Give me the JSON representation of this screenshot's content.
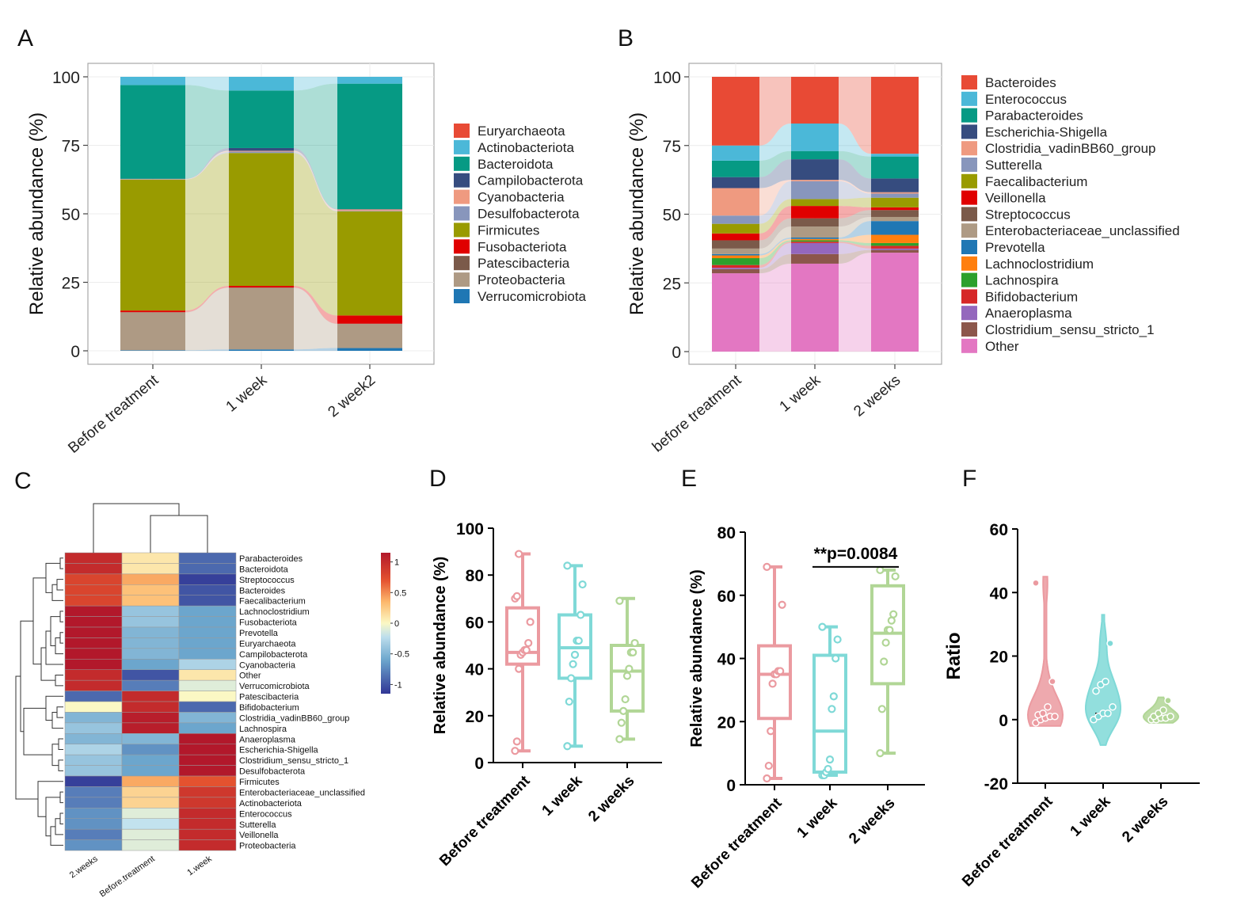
{
  "panels": {
    "A": {
      "letter": "A"
    },
    "B": {
      "letter": "B"
    },
    "C": {
      "letter": "C"
    },
    "D": {
      "letter": "D"
    },
    "E": {
      "letter": "E"
    },
    "F": {
      "letter": "F"
    }
  },
  "chart_data": [
    {
      "panel": "A",
      "type": "bar",
      "stacked": true,
      "flow_bands": true,
      "categories": [
        "Before treatment",
        "1 week",
        "2 week2"
      ],
      "ylabel": "Relative abundance (%)",
      "ylim": [
        0,
        100
      ],
      "yticks": [
        0,
        25,
        50,
        75,
        100
      ],
      "grid": true,
      "legend_position": "right",
      "series": [
        {
          "name": "Verrucomicrobiota",
          "color": "#1f77b4",
          "values": [
            0.2,
            0.5,
            1.0
          ]
        },
        {
          "name": "Proteobacteria",
          "color": "#ae9a84",
          "values": [
            13.8,
            22.5,
            8.8
          ]
        },
        {
          "name": "Patescibacteria",
          "color": "#7b5a4a",
          "values": [
            0.1,
            0.1,
            0.1
          ]
        },
        {
          "name": "Fusobacteriota",
          "color": "#e00000",
          "values": [
            0.6,
            0.6,
            3.0
          ]
        },
        {
          "name": "Firmicutes",
          "color": "#999b00",
          "values": [
            47.8,
            48.5,
            38.0
          ]
        },
        {
          "name": "Desulfobacterota",
          "color": "#8896bc",
          "values": [
            0.1,
            0.5,
            0.2
          ]
        },
        {
          "name": "Cyanobacteria",
          "color": "#ef9a80",
          "values": [
            0.1,
            0.3,
            0.5
          ]
        },
        {
          "name": "Campilobacterota",
          "color": "#364c7f",
          "values": [
            0.1,
            1.0,
            0.1
          ]
        },
        {
          "name": "Bacteroidota",
          "color": "#069a84",
          "values": [
            34.2,
            21.0,
            45.8
          ]
        },
        {
          "name": "Actinobacteriota",
          "color": "#4bb8d8",
          "values": [
            3.0,
            5.0,
            2.5
          ]
        },
        {
          "name": "Euryarchaeota",
          "color": "#e84a35",
          "values": [
            0.0,
            0.0,
            0.0
          ]
        }
      ],
      "legend_order": [
        "Euryarchaeota",
        "Actinobacteriota",
        "Bacteroidota",
        "Campilobacterota",
        "Cyanobacteria",
        "Desulfobacterota",
        "Firmicutes",
        "Fusobacteriota",
        "Patescibacteria",
        "Proteobacteria",
        "Verrucomicrobiota"
      ]
    },
    {
      "panel": "B",
      "type": "bar",
      "stacked": true,
      "flow_bands": true,
      "categories": [
        "before treatment",
        "1 week",
        "2 weeks"
      ],
      "ylabel": "Relative abundance (%)",
      "ylim": [
        0,
        100
      ],
      "yticks": [
        0,
        25,
        50,
        75,
        100
      ],
      "grid": true,
      "legend_position": "right",
      "series": [
        {
          "name": "Other",
          "color": "#e377c2",
          "values": [
            28.5,
            32.0,
            36.0
          ]
        },
        {
          "name": "Clostridium_sensu_stricto_1",
          "color": "#8c564b",
          "values": [
            1.5,
            3.5,
            1.0
          ]
        },
        {
          "name": "Anaeroplasma",
          "color": "#9467bd",
          "values": [
            0.5,
            4.0,
            0.5
          ]
        },
        {
          "name": "Bifidobacterium",
          "color": "#d62728",
          "values": [
            1.0,
            0.5,
            1.0
          ]
        },
        {
          "name": "Lachnospira",
          "color": "#2ca02c",
          "values": [
            2.5,
            0.5,
            1.0
          ]
        },
        {
          "name": "Lachnoclostridium",
          "color": "#ff7f0e",
          "values": [
            1.0,
            0.5,
            3.0
          ]
        },
        {
          "name": "Prevotella",
          "color": "#1f77b4",
          "values": [
            0.5,
            0.5,
            5.0
          ]
        },
        {
          "name": "Enterobacteriaceae_unclassified",
          "color": "#ae9a84",
          "values": [
            2.0,
            4.0,
            1.5
          ]
        },
        {
          "name": "Streptococcus",
          "color": "#7b5a4a",
          "values": [
            3.0,
            3.0,
            2.5
          ]
        },
        {
          "name": "Veillonella",
          "color": "#e00000",
          "values": [
            2.5,
            4.5,
            1.0
          ]
        },
        {
          "name": "Faecalibacterium",
          "color": "#999b00",
          "values": [
            3.5,
            2.5,
            3.5
          ]
        },
        {
          "name": "Sutterella",
          "color": "#8896bc",
          "values": [
            3.0,
            6.5,
            1.5
          ]
        },
        {
          "name": "Clostridia_vadinBB60_group",
          "color": "#ef9a80",
          "values": [
            10.0,
            0.5,
            0.5
          ]
        },
        {
          "name": "Escherichia-Shigella",
          "color": "#364c7f",
          "values": [
            4.0,
            7.5,
            5.0
          ]
        },
        {
          "name": "Parabacteroides",
          "color": "#069a84",
          "values": [
            6.0,
            3.0,
            8.0
          ]
        },
        {
          "name": "Enterococcus",
          "color": "#4bb8d8",
          "values": [
            5.5,
            10.0,
            1.0
          ]
        },
        {
          "name": "Bacteroides",
          "color": "#e84a35",
          "values": [
            25.0,
            17.0,
            28.0
          ]
        }
      ],
      "legend_order": [
        "Bacteroides",
        "Enterococcus",
        "Parabacteroides",
        "Escherichia-Shigella",
        "Clostridia_vadinBB60_group",
        "Sutterella",
        "Faecalibacterium",
        "Veillonella",
        "Streptococcus",
        "Enterobacteriaceae_unclassified",
        "Prevotella",
        "Lachnoclostridium",
        "Lachnospira",
        "Bifidobacterium",
        "Anaeroplasma",
        "Clostridium_sensu_stricto_1",
        "Other"
      ]
    },
    {
      "panel": "C",
      "type": "heatmap",
      "columns": [
        "2.weeks",
        "Before.treatment",
        "1.week"
      ],
      "rows": [
        "Parabacteroides",
        "Bacteroidota",
        "Streptococcus",
        "Bacteroides",
        "Faecalibacterium",
        "Lachnoclostridium",
        "Fusobacteriota",
        "Prevotella",
        "Euryarchaeota",
        "Campilobacterota",
        "Cyanobacteria",
        "Other",
        "Verrucomicrobiota",
        "Patescibacteria",
        "Bifidobacterium",
        "Clostridia_vadinBB60_group",
        "Lachnospira",
        "Anaeroplasma",
        "Escherichia-Shigella",
        "Clostridium_sensu_stricto_1",
        "Desulfobacterota",
        "Firmicutes",
        "Enterobacteriaceae_unclassified",
        "Actinobacteriota",
        "Enterococcus",
        "Sutterella",
        "Veillonella",
        "Proteobacteria"
      ],
      "values": [
        [
          1.0,
          0.1,
          -0.9
        ],
        [
          1.0,
          0.1,
          -0.9
        ],
        [
          0.8,
          0.4,
          -1.1
        ],
        [
          0.8,
          0.3,
          -1.0
        ],
        [
          0.8,
          0.3,
          -1.0
        ],
        [
          1.15,
          -0.4,
          -0.6
        ],
        [
          1.15,
          -0.4,
          -0.6
        ],
        [
          1.15,
          -0.5,
          -0.6
        ],
        [
          1.15,
          -0.5,
          -0.6
        ],
        [
          1.15,
          -0.5,
          -0.6
        ],
        [
          1.15,
          -0.6,
          -0.3
        ],
        [
          1.0,
          -1.0,
          0.1
        ],
        [
          1.0,
          -0.8,
          -0.1
        ],
        [
          -0.9,
          1.0,
          0.0
        ],
        [
          0.0,
          1.0,
          -0.9
        ],
        [
          -0.5,
          1.1,
          -0.5
        ],
        [
          -0.4,
          1.1,
          -0.6
        ],
        [
          -0.5,
          -0.5,
          1.15
        ],
        [
          -0.3,
          -0.7,
          1.15
        ],
        [
          -0.4,
          -0.6,
          1.15
        ],
        [
          -0.4,
          -0.6,
          1.15
        ],
        [
          -1.1,
          0.4,
          0.7
        ],
        [
          -0.8,
          0.2,
          0.9
        ],
        [
          -0.8,
          0.2,
          0.9
        ],
        [
          -0.7,
          -0.1,
          1.0
        ],
        [
          -0.7,
          -0.2,
          1.0
        ],
        [
          -0.8,
          -0.1,
          1.0
        ],
        [
          -0.7,
          -0.1,
          1.0
        ]
      ],
      "colorbar_ticks": [
        1,
        0.5,
        0,
        -0.5,
        -1
      ],
      "colorbar_labels": [
        "1",
        "0.5",
        "0",
        "-0.5",
        "-1"
      ],
      "colorbar_range": [
        -1.15,
        1.15
      ]
    },
    {
      "panel": "D",
      "type": "box",
      "categories": [
        "Before treatment",
        "1 week",
        "2 weeks"
      ],
      "colors": [
        "#eb9aa0",
        "#7fd9d7",
        "#b1d696"
      ],
      "ylabel": "Relative abundance (%)",
      "ylim": [
        0,
        100
      ],
      "yticks": [
        0,
        20,
        40,
        60,
        80,
        100
      ],
      "boxes": [
        {
          "min": 5,
          "q1": 42,
          "median": 47,
          "q3": 66,
          "max": 89,
          "points": [
            5,
            9,
            40,
            46,
            47,
            48,
            48,
            51,
            60,
            70,
            71,
            89
          ]
        },
        {
          "min": 7,
          "q1": 36,
          "median": 49,
          "q3": 63,
          "max": 84,
          "points": [
            7,
            26,
            36,
            42,
            46,
            52,
            52,
            63,
            76,
            84
          ]
        },
        {
          "min": 10,
          "q1": 22,
          "median": 39,
          "q3": 50,
          "max": 70,
          "points": [
            10,
            17,
            22,
            27,
            37,
            40,
            47,
            47,
            51,
            69
          ]
        }
      ]
    },
    {
      "panel": "E",
      "type": "box",
      "categories": [
        "Before treatment",
        "1 week",
        "2 weeks"
      ],
      "colors": [
        "#eb9aa0",
        "#7fd9d7",
        "#b1d696"
      ],
      "ylabel": "Relative abundance (%)",
      "ylim": [
        0,
        80
      ],
      "yticks": [
        0,
        20,
        40,
        60,
        80
      ],
      "annotation": {
        "text": "**p=0.0084",
        "from": 1,
        "to": 2,
        "y": 69
      },
      "boxes": [
        {
          "min": 2,
          "q1": 21,
          "median": 35,
          "q3": 44,
          "max": 69,
          "points": [
            2,
            6,
            17,
            32,
            35,
            35,
            36,
            36,
            57,
            69
          ]
        },
        {
          "min": 3,
          "q1": 4,
          "median": 17,
          "q3": 41,
          "max": 50,
          "points": [
            3,
            3,
            4,
            5,
            8,
            24,
            28,
            40,
            46,
            50
          ]
        },
        {
          "min": 10,
          "q1": 32,
          "median": 48,
          "q3": 63,
          "max": 68,
          "points": [
            10,
            24,
            39,
            45,
            49,
            49,
            52,
            54,
            66,
            68
          ]
        }
      ]
    },
    {
      "panel": "F",
      "type": "violin",
      "categories": [
        "Before treatment",
        "1 week",
        "2 weeks"
      ],
      "colors": [
        "#eb9aa0",
        "#7fd9d7",
        "#b1d696"
      ],
      "ylabel": "Ratio",
      "ylim": [
        -20,
        60
      ],
      "yticks": [
        -20,
        0,
        20,
        40,
        60
      ],
      "violins": [
        {
          "min": -2,
          "max": 45,
          "median": 1,
          "points": [
            -1,
            0,
            0.5,
            1,
            1,
            1.5,
            2,
            4,
            12,
            43
          ]
        },
        {
          "min": -8,
          "max": 33,
          "median": 2,
          "points": [
            0,
            1,
            2,
            2,
            4,
            9,
            11,
            12,
            24
          ]
        },
        {
          "min": -1,
          "max": 7,
          "median": 1,
          "points": [
            0,
            0,
            0.5,
            0.5,
            1,
            1,
            2,
            3,
            6
          ]
        }
      ]
    }
  ]
}
